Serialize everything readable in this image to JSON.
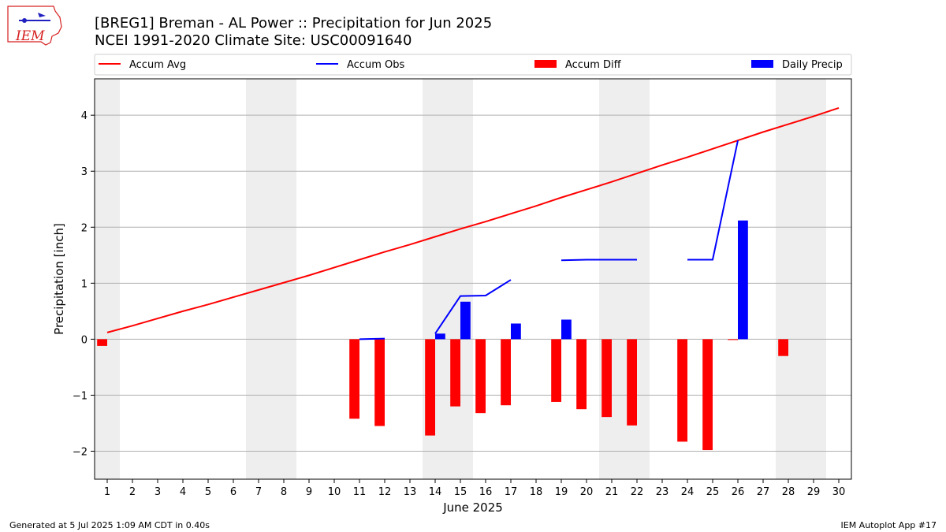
{
  "header": {
    "title_line1": "[BREG1] Breman - AL Power :: Precipitation for Jun 2025",
    "title_line2": "NCEI 1991-2020 Climate Site: USC00091640",
    "logo_text": "IEM"
  },
  "footer": {
    "left": "Generated at 5 Jul 2025 1:09 AM CDT in 0.40s",
    "right": "IEM Autoplot App #17"
  },
  "colors": {
    "avg": "#ff0000",
    "obs": "#0000ff",
    "diff": "#ff0000",
    "daily": "#0000ff",
    "weekend": "#eeeeee",
    "grid": "#b0b0b0"
  },
  "chart_data": {
    "type": "bar",
    "title": "[BREG1] Breman - AL Power :: Precipitation for Jun 2025",
    "xlabel": "June 2025",
    "ylabel": "Precipitation [inch]",
    "xlim": [
      0.5,
      30.5
    ],
    "ylim": [
      -2.5,
      4.65
    ],
    "yticks": [
      -2,
      -1,
      0,
      1,
      2,
      3,
      4
    ],
    "ytick_labels": [
      "−2",
      "−1",
      "0",
      "1",
      "2",
      "3",
      "4"
    ],
    "x": [
      1,
      2,
      3,
      4,
      5,
      6,
      7,
      8,
      9,
      10,
      11,
      12,
      13,
      14,
      15,
      16,
      17,
      18,
      19,
      20,
      21,
      22,
      23,
      24,
      25,
      26,
      27,
      28,
      29,
      30
    ],
    "x_labels": [
      "1",
      "2",
      "3",
      "4",
      "5",
      "6",
      "7",
      "8",
      "9",
      "10",
      "11",
      "12",
      "13",
      "14",
      "15",
      "16",
      "17",
      "18",
      "19",
      "20",
      "21",
      "22",
      "23",
      "24",
      "25",
      "26",
      "27",
      "28",
      "29",
      "30"
    ],
    "weekend_days": [
      1,
      7,
      8,
      14,
      15,
      21,
      22,
      28,
      29
    ],
    "legend": {
      "placement": "top",
      "entries": [
        {
          "label": "Accum Avg",
          "kind": "line",
          "series": "accum_avg"
        },
        {
          "label": "Accum Obs",
          "kind": "line",
          "series": "accum_obs"
        },
        {
          "label": "Accum Diff",
          "kind": "bar",
          "series": "accum_diff"
        },
        {
          "label": "Daily Precip",
          "kind": "bar",
          "series": "daily_precip"
        }
      ]
    },
    "series": [
      {
        "name": "Accum Avg",
        "key": "accum_avg",
        "type": "line",
        "values": [
          0.12,
          0.24,
          0.37,
          0.5,
          0.62,
          0.75,
          0.88,
          1.01,
          1.14,
          1.28,
          1.42,
          1.56,
          1.69,
          1.83,
          1.97,
          2.1,
          2.24,
          2.38,
          2.53,
          2.67,
          2.81,
          2.96,
          3.11,
          3.25,
          3.4,
          3.55,
          3.7,
          3.84,
          3.98,
          4.13
        ]
      },
      {
        "name": "Accum Obs",
        "key": "accum_obs",
        "type": "line",
        "values": [
          null,
          null,
          null,
          null,
          null,
          null,
          null,
          null,
          null,
          null,
          0.0,
          0.01,
          null,
          0.1,
          0.77,
          0.78,
          1.06,
          null,
          1.41,
          1.42,
          1.42,
          1.42,
          null,
          1.42,
          1.42,
          3.55,
          null,
          null,
          null,
          null
        ]
      },
      {
        "name": "Accum Diff",
        "key": "accum_diff",
        "type": "bar",
        "values": [
          -0.12,
          null,
          null,
          null,
          null,
          null,
          null,
          null,
          null,
          null,
          -1.42,
          -1.55,
          null,
          -1.72,
          -1.2,
          -1.32,
          -1.18,
          null,
          -1.12,
          -1.25,
          -1.39,
          -1.54,
          null,
          -1.83,
          -1.98,
          -0.01,
          null,
          -0.3,
          null,
          null
        ]
      },
      {
        "name": "Daily Precip",
        "key": "daily_precip",
        "type": "bar",
        "values": [
          null,
          null,
          null,
          null,
          null,
          null,
          null,
          null,
          null,
          null,
          null,
          null,
          null,
          0.1,
          0.67,
          null,
          0.28,
          null,
          0.35,
          null,
          null,
          null,
          null,
          null,
          null,
          2.12,
          null,
          null,
          null,
          null
        ]
      }
    ]
  }
}
